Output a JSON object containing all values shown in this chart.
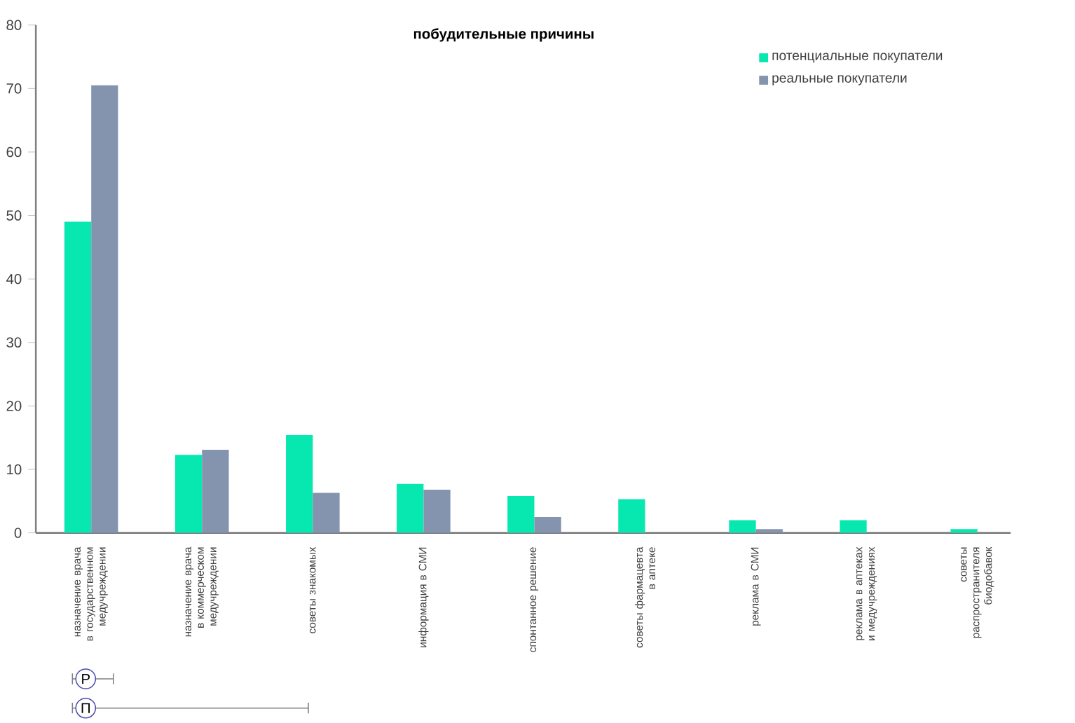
{
  "chart_data": {
    "type": "bar",
    "title": "побудительные причины",
    "categories": [
      "назначение врача в государственном медучреждении",
      "назначение врача в коммерческом медучреждении",
      "советы знакомых",
      "информация в СМИ",
      "спонтанное решение",
      "советы фармацевта в аптеке",
      "реклама в СМИ",
      "реклама в аптеках и медучреждениях",
      "советы распространителя биодобавок"
    ],
    "series": [
      {
        "name": "потенциальные покупатели",
        "color": "#06e8b0",
        "values": [
          49,
          12.3,
          15.4,
          7.7,
          5.8,
          5.3,
          2,
          2,
          0.6
        ]
      },
      {
        "name": "реальные покупатели",
        "color": "#8494ae",
        "values": [
          70.5,
          13.1,
          6.3,
          6.8,
          2.5,
          null,
          0.6,
          null,
          null
        ]
      }
    ],
    "ylim": [
      0,
      80
    ],
    "yticks": [
      0,
      10,
      20,
      30,
      40,
      50,
      60,
      70,
      80
    ],
    "legend": "top right",
    "annotations": [
      "Р",
      "П"
    ]
  }
}
